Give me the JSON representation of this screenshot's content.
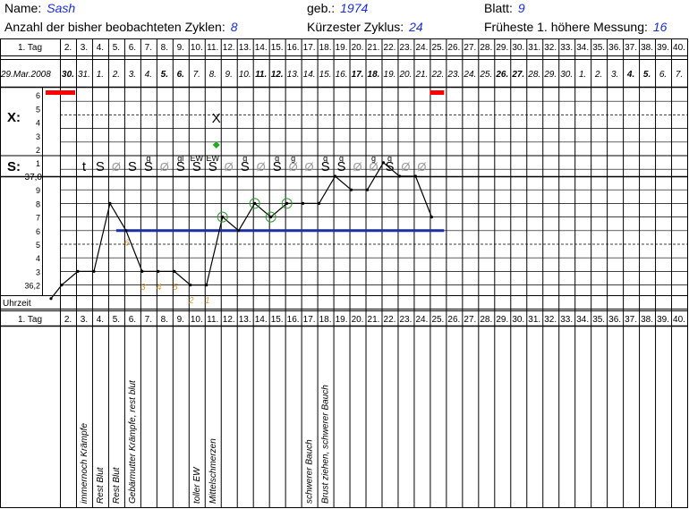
{
  "header": {
    "name_label": "Name:",
    "name_value": "Sash",
    "birth_label": "geb.:",
    "birth_value": "1974",
    "sheet_label": "Blatt:",
    "sheet_value": "9",
    "cycles_label": "Anzahl der bisher beobachteten Zyklen:",
    "cycles_value": "8",
    "shortest_label": "Kürzester Zyklus:",
    "shortest_value": "24",
    "earliest_label": "Früheste 1. höhere Messung:",
    "earliest_value": "16"
  },
  "labels": {
    "day_row": "1. Tag",
    "x_row": "X:",
    "s_row": "S:",
    "time_row": "Uhrzeit"
  },
  "colors": {
    "accent": "#1a2fd0",
    "red_marker": "#ff0000",
    "coverline": "#1a2fa0",
    "circle": "#2e9e2e",
    "green_dot": "#1fae1f",
    "orange": "#e09a3a"
  },
  "chart_data": {
    "type": "line",
    "day_numbers": [
      "2.",
      "3.",
      "4.",
      "5.",
      "6.",
      "7.",
      "8.",
      "9.",
      "10.",
      "11.",
      "12.",
      "13.",
      "14.",
      "15.",
      "16.",
      "17.",
      "18.",
      "19.",
      "20.",
      "21.",
      "22.",
      "23.",
      "24.",
      "25.",
      "26.",
      "27.",
      "28.",
      "29.",
      "30.",
      "31.",
      "32.",
      "33.",
      "34.",
      "35.",
      "36.",
      "37.",
      "38.",
      "39.",
      "40."
    ],
    "dates": [
      "29.Mar.2008",
      "30.",
      "31.",
      "1.",
      "2.",
      "3.",
      "4.",
      "5.",
      "6.",
      "7.",
      "8.",
      "9.",
      "10.",
      "11.",
      "12.",
      "13.",
      "14.",
      "15.",
      "16.",
      "17.",
      "18.",
      "19.",
      "20.",
      "21.",
      "22.",
      "23.",
      "24.",
      "25.",
      "26.",
      "27.",
      "28.",
      "29.",
      "30.",
      "1.",
      "2.",
      "3.",
      "4.",
      "5.",
      "6.",
      "7."
    ],
    "bold_dates": [
      1,
      7,
      8,
      13,
      14,
      19,
      20,
      28,
      29,
      36,
      37
    ],
    "temp_ticks": [
      "9",
      "8",
      "7",
      "6",
      "5",
      "4",
      "3",
      "36,2"
    ],
    "temp_mid_label": "37,0",
    "temperatures": [
      36.1,
      36.2,
      36.3,
      36.3,
      36.8,
      36.6,
      36.3,
      36.3,
      36.3,
      36.2,
      36.2,
      36.7,
      36.6,
      36.8,
      36.7,
      36.8,
      36.8,
      36.8,
      37.0,
      36.9,
      36.9,
      37.1,
      37.0,
      37.0,
      36.7
    ],
    "circled_days": [
      12,
      14,
      15,
      16
    ],
    "coverline": {
      "value": 36.6,
      "from_day": 5,
      "to_day": 25
    },
    "orange_numbers": [
      {
        "day": 6,
        "text": "6"
      },
      {
        "day": 7,
        "text": "3"
      },
      {
        "day": 8,
        "text": "4"
      },
      {
        "day": 9,
        "text": "5"
      },
      {
        "day": 10,
        "text": "2"
      },
      {
        "day": 11,
        "text": "1"
      }
    ],
    "x_scale_ticks": [
      "6",
      "5",
      "4",
      "3",
      "2",
      "1"
    ],
    "bleeding_days": [
      1,
      25
    ],
    "x_mark": {
      "day": 11,
      "text": "X"
    },
    "green_dot_day": 11,
    "mucus": [
      {
        "day": 3,
        "text": "t"
      },
      {
        "day": 4,
        "text": "S"
      },
      {
        "day": 5,
        "text": "Ø"
      },
      {
        "day": 6,
        "text": "S"
      },
      {
        "day": 7,
        "text": "S"
      },
      {
        "day": 8,
        "text": "Ø"
      },
      {
        "day": 9,
        "text": "S"
      },
      {
        "day": 10,
        "text": "S"
      },
      {
        "day": 11,
        "text": "S"
      },
      {
        "day": 12,
        "text": "Ø"
      },
      {
        "day": 13,
        "text": "S"
      },
      {
        "day": 14,
        "text": "Ø"
      },
      {
        "day": 15,
        "text": "S"
      },
      {
        "day": 16,
        "text": "Ø"
      },
      {
        "day": 17,
        "text": "Ø"
      },
      {
        "day": 18,
        "text": "S"
      },
      {
        "day": 19,
        "text": "S"
      },
      {
        "day": 20,
        "text": "Ø"
      },
      {
        "day": 21,
        "text": "Ø"
      },
      {
        "day": 22,
        "text": "S"
      },
      {
        "day": 23,
        "text": "Ø"
      },
      {
        "day": 24,
        "text": "Ø"
      }
    ],
    "mucus_superscripts": [
      {
        "day": 7,
        "text": "g"
      },
      {
        "day": 9,
        "text": "gl"
      },
      {
        "day": 10,
        "text": "EW"
      },
      {
        "day": 11,
        "text": "EW"
      },
      {
        "day": 13,
        "text": "g"
      },
      {
        "day": 15,
        "text": "g"
      },
      {
        "day": 16,
        "text": "g"
      },
      {
        "day": 18,
        "text": "g"
      },
      {
        "day": 19,
        "text": "g"
      },
      {
        "day": 21,
        "text": "g"
      },
      {
        "day": 22,
        "text": "g"
      }
    ],
    "notes": [
      {
        "day": 3,
        "text": "immernoch Krämpfe"
      },
      {
        "day": 4,
        "text": "Rest Blut"
      },
      {
        "day": 5,
        "text": "Rest Blut"
      },
      {
        "day": 6,
        "text": "Gebärmutter Krämpfe, rest blut"
      },
      {
        "day": 10,
        "text": "toller EW"
      },
      {
        "day": 11,
        "text": "Mittelschmerzen"
      },
      {
        "day": 17,
        "text": "schwerer Bauch"
      },
      {
        "day": 18,
        "text": "Brust ziehen, schwerer Bauch"
      }
    ]
  }
}
